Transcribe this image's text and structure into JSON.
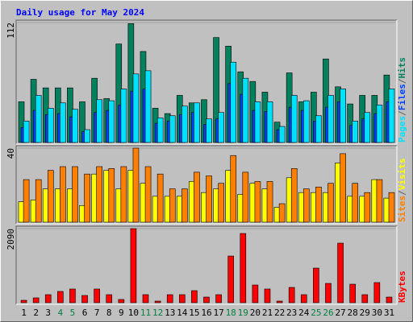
{
  "chart_data": [
    {
      "type": "bar",
      "title": "Daily usage for May 2024",
      "legend_separator": "/",
      "ylim": [
        0,
        112
      ],
      "yticks": [
        112
      ],
      "series": [
        {
          "name": "Hits",
          "color": "#00805c",
          "values": [
            38,
            59,
            51,
            51,
            51,
            38,
            60,
            41,
            92,
            111,
            85,
            32,
            27,
            44,
            37,
            40,
            98,
            90,
            66,
            57,
            47,
            19,
            65,
            38,
            47,
            78,
            52,
            36,
            44,
            44,
            63
          ]
        },
        {
          "name": "Files",
          "color": "#0040ff",
          "values": [
            14,
            30,
            26,
            27,
            24,
            10,
            28,
            30,
            35,
            48,
            50,
            18,
            20,
            26,
            28,
            17,
            22,
            55,
            45,
            30,
            29,
            12,
            33,
            30,
            20,
            33,
            38,
            16,
            22,
            27,
            38
          ]
        },
        {
          "name": "Pages",
          "color": "#00e0ff",
          "values": [
            20,
            44,
            32,
            37,
            31,
            12,
            40,
            39,
            50,
            64,
            67,
            23,
            25,
            34,
            37,
            22,
            28,
            75,
            60,
            38,
            38,
            15,
            44,
            39,
            25,
            44,
            50,
            20,
            28,
            35,
            50
          ]
        }
      ]
    },
    {
      "type": "bar",
      "legend_separator": "/",
      "ylim": [
        0,
        40
      ],
      "yticks": [
        40
      ],
      "series": [
        {
          "name": "Visits",
          "color": "#ffff00",
          "values": [
            11,
            12,
            18,
            18,
            18,
            9,
            26,
            28,
            18,
            28,
            21,
            14,
            14,
            14,
            22,
            16,
            18,
            28,
            15,
            21,
            18,
            8,
            24,
            16,
            16,
            16,
            32,
            14,
            14,
            23,
            13
          ]
        },
        {
          "name": "Sites",
          "color": "#ff8000",
          "values": [
            23,
            23,
            28,
            30,
            30,
            26,
            30,
            29,
            30,
            40,
            30,
            26,
            18,
            18,
            27,
            25,
            21,
            36,
            27,
            22,
            22,
            10,
            29,
            18,
            19,
            21,
            37,
            21,
            16,
            23,
            16
          ]
        }
      ]
    },
    {
      "type": "bar",
      "ylim": [
        0,
        2090
      ],
      "yticks": [
        2090
      ],
      "categories": [
        "1",
        "2",
        "3",
        "4",
        "5",
        "6",
        "7",
        "8",
        "9",
        "10",
        "11",
        "12",
        "13",
        "14",
        "15",
        "16",
        "17",
        "18",
        "19",
        "20",
        "21",
        "22",
        "23",
        "24",
        "25",
        "26",
        "27",
        "28",
        "29",
        "30",
        "31"
      ],
      "category_colors": [
        "#000000",
        "#000000",
        "#000000",
        "#008040",
        "#008040",
        "#000000",
        "#000000",
        "#000000",
        "#000000",
        "#000000",
        "#008040",
        "#008040",
        "#000000",
        "#000000",
        "#000000",
        "#000000",
        "#000000",
        "#008040",
        "#008040",
        "#000000",
        "#000000",
        "#000000",
        "#000000",
        "#000000",
        "#008040",
        "#008040",
        "#000000",
        "#000000",
        "#000000",
        "#000000",
        "#000000"
      ],
      "series": [
        {
          "name": "KBytes",
          "color": "#ff0000",
          "values": [
            68,
            136,
            227,
            318,
            386,
            204,
            386,
            227,
            91,
            2090,
            227,
            45,
            227,
            227,
            340,
            159,
            227,
            1317,
            1953,
            499,
            386,
            45,
            431,
            227,
            976,
            545,
            1681,
            522,
            227,
            568,
            159
          ]
        }
      ]
    }
  ]
}
